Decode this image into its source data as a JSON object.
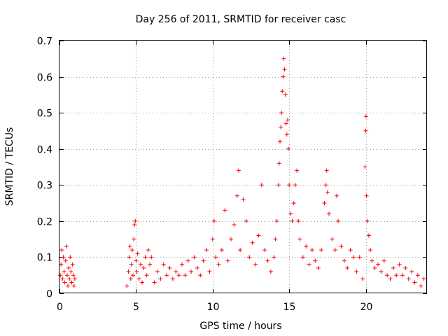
{
  "chart_data": {
    "type": "scatter",
    "title": "Day 256 of 2011, SRMTID for receiver casc",
    "xlabel": "GPS time / hours",
    "ylabel": "SRMTID / TECUs",
    "xlim": [
      0,
      24
    ],
    "ylim": [
      0,
      0.7
    ],
    "x_ticks": [
      0,
      5,
      10,
      15,
      20
    ],
    "x_tick_labels": [
      "0",
      "5",
      "10",
      "15",
      "20"
    ],
    "y_ticks": [
      0,
      0.1,
      0.2,
      0.3,
      0.4,
      0.5,
      0.6,
      0.7
    ],
    "y_tick_labels": [
      "0",
      "0.1",
      "0.2",
      "0.3",
      "0.4",
      "0.5",
      "0.6",
      "0.7"
    ],
    "grid": true,
    "marker": "+",
    "series_color": "#ff0000",
    "series": [
      {
        "name": "SRMTID",
        "points": [
          [
            0.05,
            0.05
          ],
          [
            0.1,
            0.08
          ],
          [
            0.15,
            0.12
          ],
          [
            0.2,
            0.04
          ],
          [
            0.25,
            0.1
          ],
          [
            0.3,
            0.06
          ],
          [
            0.35,
            0.03
          ],
          [
            0.4,
            0.09
          ],
          [
            0.45,
            0.13
          ],
          [
            0.5,
            0.05
          ],
          [
            0.55,
            0.02
          ],
          [
            0.6,
            0.07
          ],
          [
            0.65,
            0.04
          ],
          [
            0.7,
            0.1
          ],
          [
            0.75,
            0.06
          ],
          [
            0.8,
            0.03
          ],
          [
            0.85,
            0.08
          ],
          [
            0.9,
            0.05
          ],
          [
            0.95,
            0.02
          ],
          [
            1.0,
            0.04
          ],
          [
            4.4,
            0.02
          ],
          [
            4.5,
            0.06
          ],
          [
            4.55,
            0.1
          ],
          [
            4.6,
            0.13
          ],
          [
            4.65,
            0.04
          ],
          [
            4.7,
            0.08
          ],
          [
            4.75,
            0.12
          ],
          [
            4.8,
            0.05
          ],
          [
            4.85,
            0.15
          ],
          [
            4.9,
            0.19
          ],
          [
            4.95,
            0.2
          ],
          [
            5.0,
            0.09
          ],
          [
            5.05,
            0.06
          ],
          [
            5.1,
            0.11
          ],
          [
            5.2,
            0.04
          ],
          [
            5.3,
            0.08
          ],
          [
            5.4,
            0.03
          ],
          [
            5.5,
            0.07
          ],
          [
            5.6,
            0.1
          ],
          [
            5.7,
            0.05
          ],
          [
            5.8,
            0.12
          ],
          [
            5.9,
            0.08
          ],
          [
            6.0,
            0.1
          ],
          [
            6.2,
            0.03
          ],
          [
            6.4,
            0.06
          ],
          [
            6.6,
            0.04
          ],
          [
            6.8,
            0.08
          ],
          [
            7.0,
            0.05
          ],
          [
            7.2,
            0.07
          ],
          [
            7.4,
            0.04
          ],
          [
            7.6,
            0.06
          ],
          [
            7.8,
            0.05
          ],
          [
            8.0,
            0.08
          ],
          [
            8.2,
            0.05
          ],
          [
            8.4,
            0.09
          ],
          [
            8.6,
            0.06
          ],
          [
            8.8,
            0.1
          ],
          [
            9.0,
            0.07
          ],
          [
            9.2,
            0.05
          ],
          [
            9.4,
            0.09
          ],
          [
            9.6,
            0.12
          ],
          [
            9.8,
            0.06
          ],
          [
            10.0,
            0.15
          ],
          [
            10.1,
            0.2
          ],
          [
            10.2,
            0.1
          ],
          [
            10.4,
            0.08
          ],
          [
            10.6,
            0.12
          ],
          [
            10.8,
            0.23
          ],
          [
            11.0,
            0.09
          ],
          [
            11.2,
            0.15
          ],
          [
            11.4,
            0.19
          ],
          [
            11.6,
            0.27
          ],
          [
            11.7,
            0.34
          ],
          [
            11.8,
            0.12
          ],
          [
            12.0,
            0.26
          ],
          [
            12.2,
            0.2
          ],
          [
            12.4,
            0.1
          ],
          [
            12.6,
            0.14
          ],
          [
            12.8,
            0.08
          ],
          [
            13.0,
            0.16
          ],
          [
            13.2,
            0.3
          ],
          [
            13.4,
            0.12
          ],
          [
            13.6,
            0.09
          ],
          [
            13.8,
            0.06
          ],
          [
            14.0,
            0.1
          ],
          [
            14.1,
            0.15
          ],
          [
            14.2,
            0.2
          ],
          [
            14.3,
            0.3
          ],
          [
            14.35,
            0.36
          ],
          [
            14.4,
            0.42
          ],
          [
            14.45,
            0.46
          ],
          [
            14.5,
            0.5
          ],
          [
            14.55,
            0.56
          ],
          [
            14.6,
            0.6
          ],
          [
            14.65,
            0.65
          ],
          [
            14.7,
            0.62
          ],
          [
            14.75,
            0.55
          ],
          [
            14.8,
            0.47
          ],
          [
            14.85,
            0.44
          ],
          [
            14.9,
            0.48
          ],
          [
            14.95,
            0.4
          ],
          [
            15.0,
            0.3
          ],
          [
            15.1,
            0.22
          ],
          [
            15.2,
            0.2
          ],
          [
            15.3,
            0.25
          ],
          [
            15.4,
            0.3
          ],
          [
            15.5,
            0.34
          ],
          [
            15.6,
            0.2
          ],
          [
            15.7,
            0.15
          ],
          [
            15.9,
            0.1
          ],
          [
            16.1,
            0.13
          ],
          [
            16.3,
            0.08
          ],
          [
            16.5,
            0.12
          ],
          [
            16.7,
            0.09
          ],
          [
            16.9,
            0.07
          ],
          [
            17.1,
            0.12
          ],
          [
            17.3,
            0.25
          ],
          [
            17.4,
            0.3
          ],
          [
            17.45,
            0.34
          ],
          [
            17.5,
            0.28
          ],
          [
            17.6,
            0.22
          ],
          [
            17.8,
            0.15
          ],
          [
            18.0,
            0.12
          ],
          [
            18.1,
            0.27
          ],
          [
            18.2,
            0.2
          ],
          [
            18.4,
            0.13
          ],
          [
            18.6,
            0.09
          ],
          [
            18.8,
            0.07
          ],
          [
            19.0,
            0.12
          ],
          [
            19.2,
            0.1
          ],
          [
            19.4,
            0.06
          ],
          [
            19.6,
            0.1
          ],
          [
            19.8,
            0.04
          ],
          [
            19.95,
            0.35
          ],
          [
            20.0,
            0.45
          ],
          [
            20.02,
            0.49
          ],
          [
            20.05,
            0.27
          ],
          [
            20.1,
            0.2
          ],
          [
            20.2,
            0.16
          ],
          [
            20.3,
            0.12
          ],
          [
            20.4,
            0.09
          ],
          [
            20.6,
            0.07
          ],
          [
            20.8,
            0.08
          ],
          [
            21.0,
            0.06
          ],
          [
            21.2,
            0.09
          ],
          [
            21.4,
            0.05
          ],
          [
            21.6,
            0.04
          ],
          [
            21.8,
            0.07
          ],
          [
            22.0,
            0.05
          ],
          [
            22.2,
            0.08
          ],
          [
            22.4,
            0.05
          ],
          [
            22.6,
            0.07
          ],
          [
            22.8,
            0.04
          ],
          [
            23.0,
            0.06
          ],
          [
            23.2,
            0.03
          ],
          [
            23.4,
            0.05
          ],
          [
            23.6,
            0.02
          ],
          [
            23.8,
            0.04
          ]
        ]
      }
    ]
  }
}
